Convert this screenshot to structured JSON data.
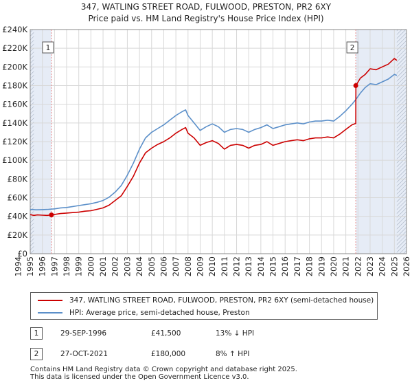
{
  "chart_data": {
    "type": "line",
    "title": "347, WATLING STREET ROAD, FULWOOD, PRESTON, PR2 6XY",
    "subtitle": "Price paid vs. HM Land Registry's House Price Index (HPI)",
    "xlim": [
      1995.0,
      2026.0
    ],
    "ylim": [
      0,
      240000
    ],
    "y_ticks": [
      0,
      20000,
      40000,
      60000,
      80000,
      100000,
      120000,
      140000,
      160000,
      180000,
      200000,
      220000,
      240000
    ],
    "y_tick_labels": [
      "£0",
      "£20K",
      "£40K",
      "£60K",
      "£80K",
      "£100K",
      "£120K",
      "£140K",
      "£160K",
      "£180K",
      "£200K",
      "£220K",
      "£240K"
    ],
    "x_tick_labels": [
      "1994",
      "1995",
      "1996",
      "1997",
      "1998",
      "1999",
      "2000",
      "2001",
      "2002",
      "2003",
      "2004",
      "2005",
      "2006",
      "2007",
      "2008",
      "2009",
      "2010",
      "2011",
      "2012",
      "2013",
      "2014",
      "2015",
      "2016",
      "2017",
      "2018",
      "2019",
      "2020",
      "2021",
      "2022",
      "2023",
      "2024",
      "2025",
      "2026"
    ],
    "colors": {
      "price": "#cc0000",
      "hpi": "#5b8fc9",
      "shade": "#e6ecf6",
      "marker_line": "#e88888"
    },
    "series": [
      {
        "name": "347, WATLING STREET ROAD, FULWOOD, PRESTON, PR2 6XY (semi-detached house)",
        "points": [
          [
            1995.0,
            41800
          ],
          [
            1995.3,
            41000
          ],
          [
            1995.6,
            41500
          ],
          [
            1996.0,
            41200
          ],
          [
            1996.4,
            41000
          ],
          [
            1996.75,
            41500
          ],
          [
            1997.0,
            42000
          ],
          [
            1997.5,
            43000
          ],
          [
            1998.0,
            43500
          ],
          [
            1998.5,
            44000
          ],
          [
            1999.0,
            44500
          ],
          [
            1999.5,
            45500
          ],
          [
            2000.0,
            46000
          ],
          [
            2000.5,
            47500
          ],
          [
            2001.0,
            49000
          ],
          [
            2001.5,
            52000
          ],
          [
            2002.0,
            57000
          ],
          [
            2002.5,
            62000
          ],
          [
            2003.0,
            72000
          ],
          [
            2003.5,
            83000
          ],
          [
            2004.0,
            97000
          ],
          [
            2004.5,
            108000
          ],
          [
            2005.0,
            113000
          ],
          [
            2005.5,
            117000
          ],
          [
            2006.0,
            120000
          ],
          [
            2006.5,
            124000
          ],
          [
            2007.0,
            129000
          ],
          [
            2007.5,
            133000
          ],
          [
            2007.8,
            135000
          ],
          [
            2008.0,
            129000
          ],
          [
            2008.5,
            124000
          ],
          [
            2009.0,
            116000
          ],
          [
            2009.5,
            119000
          ],
          [
            2010.0,
            121000
          ],
          [
            2010.5,
            118000
          ],
          [
            2011.0,
            112000
          ],
          [
            2011.5,
            116000
          ],
          [
            2012.0,
            117000
          ],
          [
            2012.5,
            116000
          ],
          [
            2013.0,
            113000
          ],
          [
            2013.5,
            116000
          ],
          [
            2014.0,
            117000
          ],
          [
            2014.5,
            120000
          ],
          [
            2015.0,
            116000
          ],
          [
            2015.5,
            118000
          ],
          [
            2016.0,
            120000
          ],
          [
            2016.5,
            121000
          ],
          [
            2017.0,
            122000
          ],
          [
            2017.5,
            121000
          ],
          [
            2018.0,
            123000
          ],
          [
            2018.5,
            124000
          ],
          [
            2019.0,
            124000
          ],
          [
            2019.5,
            125000
          ],
          [
            2020.0,
            124000
          ],
          [
            2020.5,
            128000
          ],
          [
            2021.0,
            133000
          ],
          [
            2021.5,
            138000
          ],
          [
            2021.82,
            139500
          ],
          [
            2021.83,
            180000
          ],
          [
            2022.2,
            188000
          ],
          [
            2022.6,
            192000
          ],
          [
            2023.0,
            198000
          ],
          [
            2023.5,
            197000
          ],
          [
            2024.0,
            200000
          ],
          [
            2024.5,
            203000
          ],
          [
            2025.0,
            209000
          ],
          [
            2025.2,
            207000
          ]
        ]
      },
      {
        "name": "HPI: Average price, semi-detached house, Preston",
        "points": [
          [
            1995.0,
            47500
          ],
          [
            1995.5,
            47000
          ],
          [
            1996.0,
            47200
          ],
          [
            1996.5,
            47500
          ],
          [
            1997.0,
            48000
          ],
          [
            1997.5,
            49000
          ],
          [
            1998.0,
            49500
          ],
          [
            1998.5,
            50500
          ],
          [
            1999.0,
            51500
          ],
          [
            1999.5,
            52500
          ],
          [
            2000.0,
            53500
          ],
          [
            2000.5,
            55000
          ],
          [
            2001.0,
            57000
          ],
          [
            2001.5,
            60500
          ],
          [
            2002.0,
            66000
          ],
          [
            2002.5,
            73000
          ],
          [
            2003.0,
            84000
          ],
          [
            2003.5,
            97000
          ],
          [
            2004.0,
            112000
          ],
          [
            2004.5,
            124000
          ],
          [
            2005.0,
            130000
          ],
          [
            2005.5,
            134000
          ],
          [
            2006.0,
            138000
          ],
          [
            2006.5,
            143000
          ],
          [
            2007.0,
            148000
          ],
          [
            2007.5,
            152000
          ],
          [
            2007.8,
            154000
          ],
          [
            2008.0,
            148000
          ],
          [
            2008.5,
            140000
          ],
          [
            2009.0,
            132000
          ],
          [
            2009.5,
            136000
          ],
          [
            2010.0,
            139000
          ],
          [
            2010.5,
            136000
          ],
          [
            2011.0,
            130000
          ],
          [
            2011.5,
            133000
          ],
          [
            2012.0,
            134000
          ],
          [
            2012.5,
            133000
          ],
          [
            2013.0,
            130000
          ],
          [
            2013.5,
            133000
          ],
          [
            2014.0,
            135000
          ],
          [
            2014.5,
            138000
          ],
          [
            2015.0,
            134000
          ],
          [
            2015.5,
            136000
          ],
          [
            2016.0,
            138000
          ],
          [
            2016.5,
            139000
          ],
          [
            2017.0,
            140000
          ],
          [
            2017.5,
            139000
          ],
          [
            2018.0,
            141000
          ],
          [
            2018.5,
            142000
          ],
          [
            2019.0,
            142000
          ],
          [
            2019.5,
            143000
          ],
          [
            2020.0,
            142000
          ],
          [
            2020.5,
            147000
          ],
          [
            2021.0,
            153000
          ],
          [
            2021.5,
            160000
          ],
          [
            2021.82,
            165000
          ],
          [
            2022.2,
            172000
          ],
          [
            2022.6,
            178000
          ],
          [
            2023.0,
            182000
          ],
          [
            2023.5,
            181000
          ],
          [
            2024.0,
            184000
          ],
          [
            2024.5,
            187000
          ],
          [
            2025.0,
            192000
          ],
          [
            2025.2,
            191000
          ]
        ]
      }
    ],
    "annotations": [
      {
        "id": "1",
        "x": 1996.75,
        "y": 41500
      },
      {
        "id": "2",
        "x": 2021.82,
        "y": 180000
      }
    ],
    "shaded_ranges": [
      [
        1995.0,
        1996.75
      ],
      [
        2021.82,
        2026.0
      ]
    ],
    "hatched_ranges": [
      [
        1995.0,
        1995.3
      ],
      [
        2025.2,
        2026.0
      ]
    ]
  },
  "legend": {
    "price_label": "347, WATLING STREET ROAD, FULWOOD, PRESTON, PR2 6XY (semi-detached house)",
    "hpi_label": "HPI: Average price, semi-detached house, Preston"
  },
  "transactions": [
    {
      "num": "1",
      "date": "29-SEP-1996",
      "price": "£41,500",
      "hpi": "13% ↓ HPI"
    },
    {
      "num": "2",
      "date": "27-OCT-2021",
      "price": "£180,000",
      "hpi": "8% ↑ HPI"
    }
  ],
  "footer": {
    "line1": "Contains HM Land Registry data © Crown copyright and database right 2025.",
    "line2": "This data is licensed under the Open Government Licence v3.0."
  }
}
